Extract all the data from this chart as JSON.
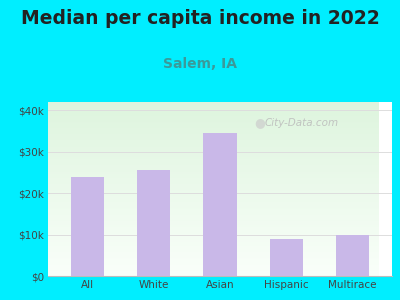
{
  "title": "Median per capita income in 2022",
  "subtitle": "Salem, IA",
  "categories": [
    "All",
    "White",
    "Asian",
    "Hispanic",
    "Multirace"
  ],
  "values": [
    24000,
    25500,
    34500,
    9000,
    9800
  ],
  "bar_color": "#c9b8e8",
  "title_fontsize": 13.5,
  "title_color": "#222222",
  "subtitle_color": "#3a9a9a",
  "subtitle_fontsize": 10,
  "background_outer": "#00eeff",
  "ylim": [
    0,
    42000
  ],
  "yticks": [
    0,
    10000,
    20000,
    30000,
    40000
  ],
  "ytick_labels": [
    "$0",
    "$10k",
    "$20k",
    "$30k",
    "$40k"
  ],
  "watermark": "City-Data.com",
  "grid_color": "#dddddd"
}
